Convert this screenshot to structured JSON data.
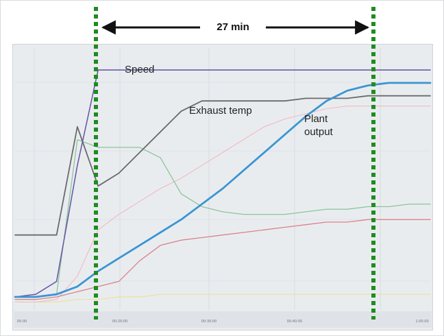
{
  "chart_data": {
    "type": "line",
    "title": "",
    "xlabel": "",
    "ylabel": "",
    "grid": true,
    "span_annotation": {
      "label": "27 min"
    },
    "annotations": [
      {
        "text": "Speed",
        "series": "speed"
      },
      {
        "text": "Exhaust temp",
        "series": "exhaust_temp"
      },
      {
        "text": "Plant",
        "series": "plant_output"
      },
      {
        "text": "output",
        "series": "plant_output"
      }
    ],
    "x_tick_labels": [
      "00:00",
      "00:20:00",
      "00:30:00",
      "00:40:00",
      "1:00:00"
    ],
    "x": [
      0,
      2,
      4,
      6,
      8,
      10,
      12,
      14,
      16,
      18,
      20,
      22,
      24,
      26,
      28,
      30,
      32,
      34,
      36,
      38,
      40
    ],
    "xlim": [
      0,
      40
    ],
    "ylim": [
      0,
      100
    ],
    "colors": {
      "plant_output": "#3a95d3",
      "speed": "#6b5aa8",
      "exhaust_temp": "#6a6a6a",
      "green": "#8ac59a",
      "red": "#d9828a",
      "pink": "#f0b9c0",
      "yellow": "#e9e29b",
      "dotted_marker": "#1e8c1f",
      "panel": "#e9ecef"
    },
    "series": [
      {
        "key": "plant_output",
        "values": [
          4,
          4,
          5,
          8,
          14,
          19,
          24,
          29,
          34,
          40,
          46,
          53,
          60,
          67,
          74,
          80,
          84,
          86,
          87,
          87,
          87
        ]
      },
      {
        "key": "speed",
        "values": [
          4,
          5,
          10,
          55,
          92,
          92,
          92,
          92,
          92,
          92,
          92,
          92,
          92,
          92,
          92,
          92,
          92,
          92,
          92,
          92,
          92
        ]
      },
      {
        "key": "exhaust_temp",
        "values": [
          28,
          28,
          28,
          70,
          47,
          52,
          60,
          68,
          76,
          80,
          80,
          80,
          80,
          80,
          81,
          81,
          81,
          82,
          82,
          82,
          82
        ]
      },
      {
        "key": "green",
        "values": [
          4,
          4,
          5,
          65,
          62,
          62,
          62,
          58,
          44,
          39,
          37,
          36,
          36,
          36,
          37,
          38,
          38,
          39,
          39,
          40,
          40
        ]
      },
      {
        "key": "red",
        "values": [
          3,
          3,
          4,
          6,
          8,
          10,
          18,
          24,
          26,
          27,
          28,
          29,
          30,
          31,
          32,
          33,
          33,
          34,
          34,
          34,
          34
        ]
      },
      {
        "key": "pink",
        "values": [
          2,
          2,
          3,
          12,
          30,
          36,
          41,
          46,
          50,
          55,
          60,
          65,
          70,
          73,
          75,
          77,
          78,
          78,
          78,
          78,
          78
        ]
      },
      {
        "key": "yellow",
        "values": [
          2,
          2,
          2,
          3,
          3,
          4,
          4,
          5,
          5,
          5,
          5,
          5,
          5,
          5,
          5,
          5,
          5,
          5,
          5,
          5,
          5
        ]
      }
    ]
  }
}
